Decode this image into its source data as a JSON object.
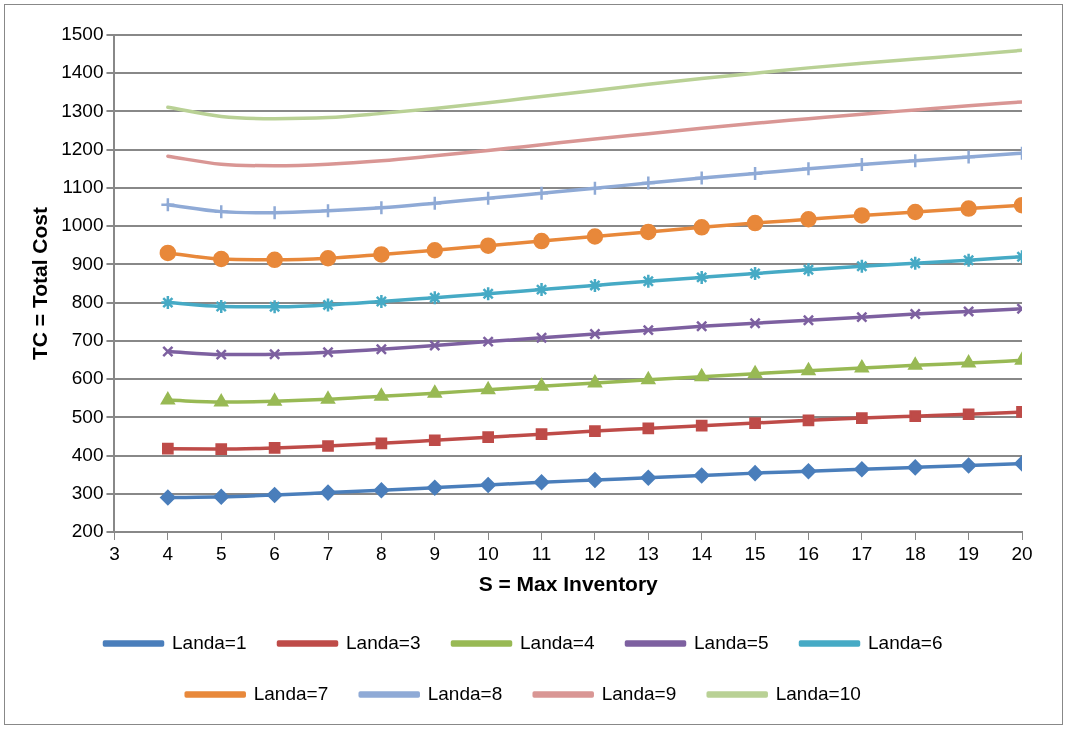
{
  "chart_data": {
    "type": "line",
    "xlabel": "S = Max Inventory",
    "ylabel": "TC = Total Cost",
    "x": [
      4,
      5,
      6,
      7,
      8,
      9,
      10,
      11,
      12,
      13,
      14,
      15,
      16,
      17,
      18,
      19,
      20
    ],
    "xlim": [
      3,
      20
    ],
    "xticks": [
      3,
      4,
      5,
      6,
      7,
      8,
      9,
      10,
      11,
      12,
      13,
      14,
      15,
      16,
      17,
      18,
      19,
      20
    ],
    "ylim": [
      200,
      1500
    ],
    "yticks": [
      200,
      300,
      400,
      500,
      600,
      700,
      800,
      900,
      1000,
      1100,
      1200,
      1300,
      1400,
      1500
    ],
    "grid": "y",
    "legend": "bottom",
    "line_style": "solid",
    "series": [
      {
        "name": "Landa=1",
        "color": "#4a7ebb",
        "marker": "diamond",
        "values": [
          290,
          292,
          297,
          303,
          309,
          316,
          323,
          330,
          336,
          342,
          348,
          354,
          359,
          364,
          369,
          374,
          379
        ]
      },
      {
        "name": "Landa=3",
        "color": "#be4b48",
        "marker": "square",
        "values": [
          418,
          417,
          420,
          425,
          432,
          440,
          448,
          456,
          464,
          471,
          478,
          485,
          492,
          498,
          503,
          508,
          514
        ]
      },
      {
        "name": "Landa=4",
        "color": "#98b954",
        "marker": "triangle",
        "values": [
          545,
          540,
          542,
          547,
          555,
          563,
          572,
          581,
          590,
          598,
          606,
          614,
          622,
          629,
          636,
          642,
          649
        ]
      },
      {
        "name": "Landa=5",
        "color": "#7d60a0",
        "marker": "x",
        "values": [
          672,
          664,
          665,
          670,
          678,
          688,
          698,
          708,
          718,
          728,
          738,
          746,
          754,
          762,
          770,
          777,
          784
        ]
      },
      {
        "name": "Landa=6",
        "color": "#46aac5",
        "marker": "cross",
        "values": [
          800,
          790,
          789,
          794,
          803,
          813,
          823,
          834,
          845,
          856,
          866,
          876,
          886,
          895,
          903,
          911,
          920
        ]
      },
      {
        "name": "Landa=7",
        "color": "#e8883a",
        "marker": "circle",
        "values": [
          930,
          914,
          912,
          916,
          926,
          937,
          949,
          961,
          973,
          985,
          997,
          1008,
          1018,
          1028,
          1037,
          1046,
          1055
        ]
      },
      {
        "name": "Landa=8",
        "color": "#8faad6",
        "marker": "plus",
        "values": [
          1056,
          1038,
          1035,
          1040,
          1048,
          1060,
          1073,
          1086,
          1099,
          1113,
          1126,
          1138,
          1150,
          1161,
          1171,
          1181,
          1191
        ]
      },
      {
        "name": "Landa=9",
        "color": "#d99694",
        "marker": "none",
        "values": [
          1183,
          1162,
          1158,
          1162,
          1171,
          1184,
          1198,
          1213,
          1228,
          1242,
          1256,
          1269,
          1281,
          1293,
          1304,
          1315,
          1325
        ]
      },
      {
        "name": "Landa=10",
        "color": "#b9d195",
        "marker": "none",
        "values": [
          1311,
          1287,
          1281,
          1284,
          1295,
          1308,
          1323,
          1339,
          1355,
          1371,
          1386,
          1400,
          1414,
          1426,
          1437,
          1448,
          1460
        ]
      }
    ]
  }
}
